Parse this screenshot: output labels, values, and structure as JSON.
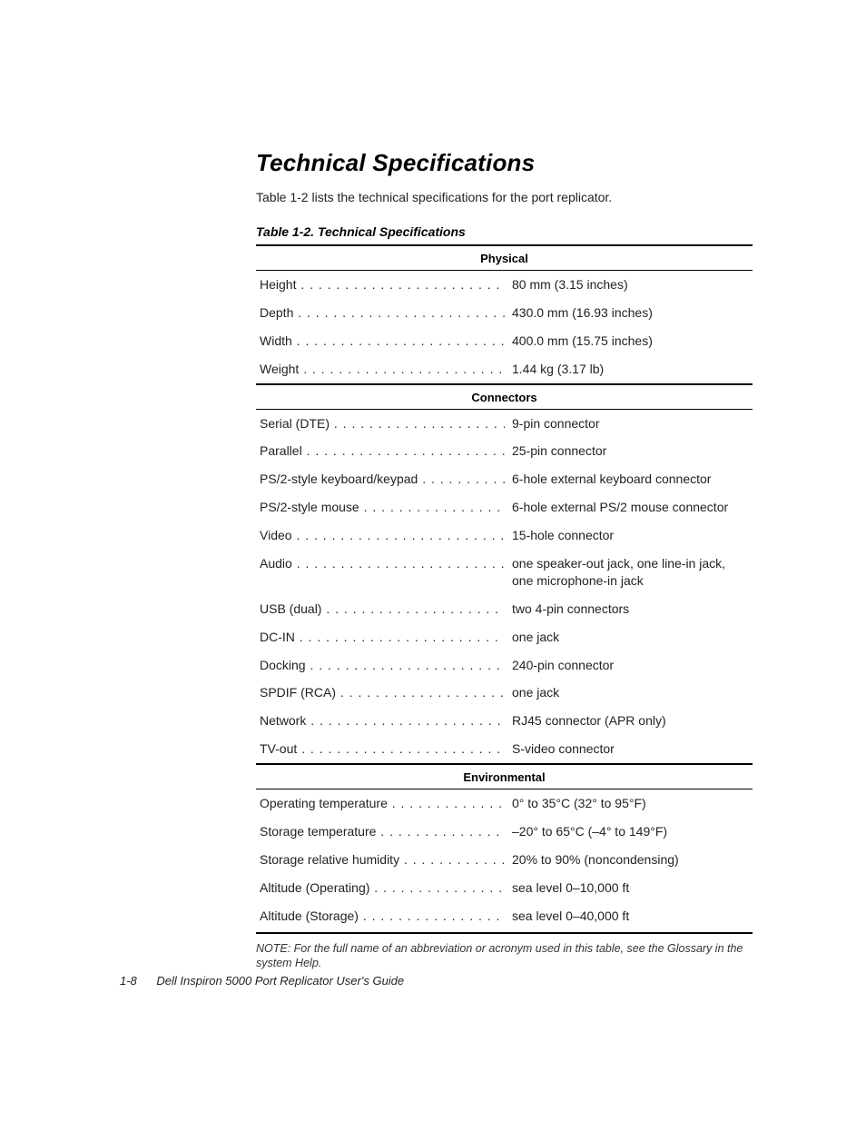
{
  "heading": "Technical Specifications",
  "intro": "Table 1-2 lists the technical specifications for the port replicator.",
  "table_caption": "Table 1-2.  Technical Specifications",
  "sections": [
    {
      "title": "Physical",
      "rows": [
        {
          "label": "Height",
          "value": "80 mm (3.15 inches)"
        },
        {
          "label": "Depth",
          "value": "430.0 mm (16.93 inches)"
        },
        {
          "label": "Width",
          "value": "400.0 mm (15.75 inches)"
        },
        {
          "label": "Weight",
          "value": "1.44 kg (3.17 lb)"
        }
      ]
    },
    {
      "title": "Connectors",
      "rows": [
        {
          "label": "Serial (DTE)",
          "value": "9-pin connector"
        },
        {
          "label": "Parallel",
          "value": "25-pin connector"
        },
        {
          "label": "PS/2-style keyboard/keypad",
          "value": "6-hole external keyboard connector"
        },
        {
          "label": "PS/2-style mouse",
          "value": "6-hole external PS/2 mouse connector"
        },
        {
          "label": "Video",
          "value": "15-hole connector"
        },
        {
          "label": "Audio",
          "value": "one speaker-out jack, one line-in jack, one microphone-in jack"
        },
        {
          "label": "USB (dual)",
          "value": "two 4-pin connectors"
        },
        {
          "label": "DC-IN",
          "value": "one jack"
        },
        {
          "label": "Docking",
          "value": "240-pin connector"
        },
        {
          "label": "SPDIF (RCA)",
          "value": "one jack"
        },
        {
          "label": "Network",
          "value": "RJ45 connector (APR only)"
        },
        {
          "label": "TV-out",
          "value": "S-video connector"
        }
      ]
    },
    {
      "title": "Environmental",
      "rows": [
        {
          "label": "Operating temperature",
          "value": "0° to 35°C (32° to 95°F)"
        },
        {
          "label": "Storage temperature",
          "value": "–20° to 65°C (–4° to 149°F)"
        },
        {
          "label": "Storage relative humidity",
          "value": "20% to 90% (noncondensing)"
        },
        {
          "label": "Altitude (Operating)",
          "value": "sea level 0–10,000 ft"
        },
        {
          "label": "Altitude (Storage)",
          "value": "sea level 0–40,000 ft"
        }
      ]
    }
  ],
  "note": "NOTE: For the full name of an abbreviation or acronym used in this table, see the Glossary in the system Help.",
  "footer": {
    "page": "1-8",
    "title": "Dell Inspiron 5000 Port Replicator User's Guide"
  }
}
